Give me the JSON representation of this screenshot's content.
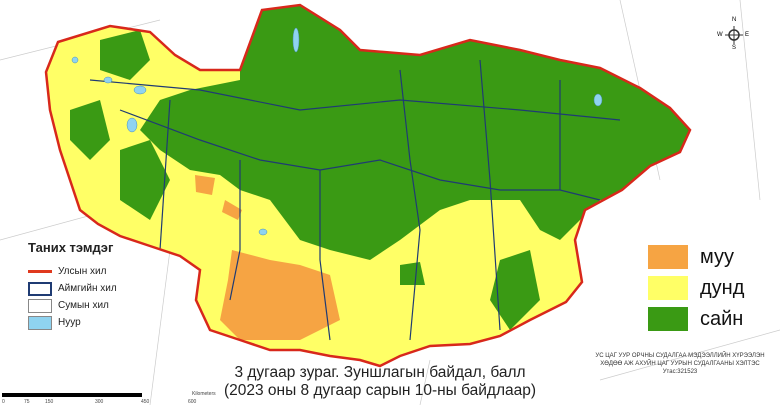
{
  "legend": {
    "title": "Таних тэмдэг",
    "items": [
      {
        "label": "Улсын хил",
        "color": "#e0391e"
      },
      {
        "label": "Аймгийн хил",
        "color": "#1f3b73"
      },
      {
        "label": "Сумын хил",
        "color": "#888888"
      },
      {
        "label": "Нуур",
        "color": "#8fd3f0"
      }
    ]
  },
  "categories": [
    {
      "label": "муу",
      "color": "#f6a443"
    },
    {
      "label": "дунд",
      "color": "#ffff66"
    },
    {
      "label": "сайн",
      "color": "#3a9a14"
    }
  ],
  "caption": {
    "line1": "3 дугаар зураг. Зуншлагын байдал, балл",
    "line2": "(2023 оны 8 дугаар сарын 10-ны байдлаар)"
  },
  "credit": {
    "line1": "УС ЦАГ УУР ОРЧНЫ СУДАЛГАА МЭДЭЭЛЛИЙН ХҮРЭЭЛЭН",
    "line2": "ХӨДӨӨ АЖ АХУЙН ЦАГ УУРЫН СУДАЛГААНЫ ХЭЛТЭС",
    "line3": "Утас:321523"
  },
  "scale": {
    "ticks": [
      "0",
      "75",
      "150",
      "300",
      "450",
      "600"
    ],
    "unit": "Kilometers"
  },
  "compass": {
    "n": "N",
    "s": "S",
    "e": "E",
    "w": "W"
  }
}
